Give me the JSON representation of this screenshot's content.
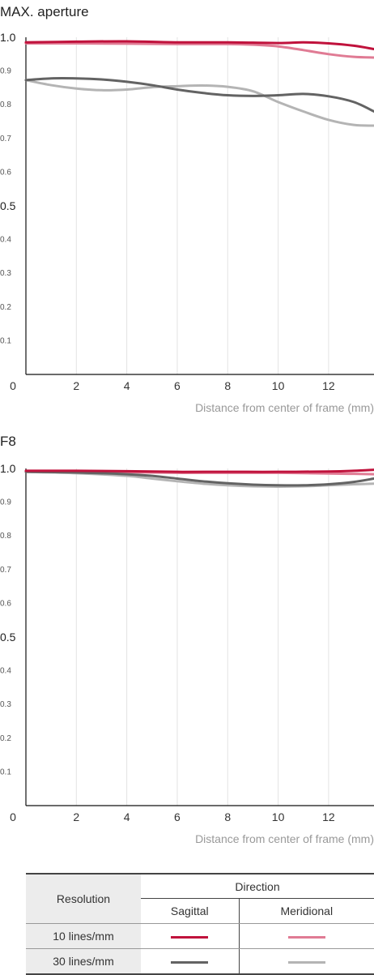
{
  "chart_data": [
    {
      "type": "line",
      "title": "MAX. aperture",
      "xlabel": "Distance from center of frame (mm)",
      "ylabel": "",
      "xlim": [
        0,
        13.8
      ],
      "ylim": [
        0,
        1.0
      ],
      "x_ticks": [
        "0",
        "2",
        "4",
        "6",
        "8",
        "10",
        "12"
      ],
      "y_ticks": [
        "1.0",
        "0.9",
        "0.8",
        "0.7",
        "0.6",
        "0.5",
        "0.4",
        "0.3",
        "0.2",
        "0.1"
      ],
      "grid": true,
      "series": [
        {
          "color": "#c0123c",
          "x": [
            0,
            2,
            4,
            6,
            8,
            10,
            11,
            12,
            13,
            13.8
          ],
          "values": [
            0.985,
            0.987,
            0.988,
            0.985,
            0.985,
            0.983,
            0.985,
            0.982,
            0.975,
            0.965
          ]
        },
        {
          "color": "#e07b94",
          "x": [
            0,
            2,
            4,
            6,
            8,
            9,
            10,
            11,
            12,
            13,
            13.8
          ],
          "values": [
            0.982,
            0.982,
            0.981,
            0.98,
            0.98,
            0.978,
            0.973,
            0.962,
            0.95,
            0.942,
            0.94
          ]
        },
        {
          "color": "#636363",
          "x": [
            0,
            1,
            2,
            3,
            4,
            5,
            6,
            7,
            8,
            9,
            10,
            11,
            12,
            13,
            13.8
          ],
          "values": [
            0.873,
            0.878,
            0.878,
            0.875,
            0.868,
            0.858,
            0.845,
            0.835,
            0.828,
            0.826,
            0.828,
            0.832,
            0.825,
            0.808,
            0.78
          ]
        },
        {
          "color": "#b4b4b4",
          "x": [
            0,
            1,
            2,
            3,
            4,
            5,
            6,
            7,
            8,
            9,
            10,
            11,
            12,
            13,
            13.8
          ],
          "values": [
            0.873,
            0.858,
            0.848,
            0.843,
            0.845,
            0.852,
            0.855,
            0.857,
            0.853,
            0.84,
            0.808,
            0.78,
            0.755,
            0.74,
            0.738
          ]
        }
      ]
    },
    {
      "type": "line",
      "title": "F8",
      "xlabel": "Distance from center of frame (mm)",
      "ylabel": "",
      "xlim": [
        0,
        13.8
      ],
      "ylim": [
        0,
        1.0
      ],
      "x_ticks": [
        "0",
        "2",
        "4",
        "6",
        "8",
        "10",
        "12"
      ],
      "y_ticks": [
        "1.0",
        "0.9",
        "0.8",
        "0.7",
        "0.6",
        "0.5",
        "0.4",
        "0.3",
        "0.2",
        "0.1"
      ],
      "grid": true,
      "series": [
        {
          "color": "#c0123c",
          "x": [
            0,
            2,
            4,
            6,
            8,
            10,
            12,
            13,
            13.8
          ],
          "values": [
            0.993,
            0.993,
            0.992,
            0.99,
            0.99,
            0.99,
            0.991,
            0.993,
            0.996
          ]
        },
        {
          "color": "#e07b94",
          "x": [
            0,
            2,
            4,
            6,
            8,
            10,
            12,
            13,
            13.8
          ],
          "values": [
            0.991,
            0.99,
            0.989,
            0.987,
            0.987,
            0.987,
            0.985,
            0.984,
            0.983
          ]
        },
        {
          "color": "#636363",
          "x": [
            0,
            2,
            4,
            5,
            6,
            7,
            8,
            9,
            10,
            11,
            12,
            13,
            13.8
          ],
          "values": [
            0.99,
            0.988,
            0.983,
            0.978,
            0.97,
            0.962,
            0.956,
            0.952,
            0.95,
            0.95,
            0.953,
            0.96,
            0.97
          ]
        },
        {
          "color": "#b4b4b4",
          "x": [
            0,
            2,
            4,
            5,
            6,
            7,
            8,
            9,
            10,
            11,
            12,
            13,
            13.8
          ],
          "values": [
            0.99,
            0.986,
            0.978,
            0.97,
            0.962,
            0.955,
            0.95,
            0.947,
            0.946,
            0.947,
            0.95,
            0.953,
            0.955
          ]
        }
      ]
    }
  ],
  "legend": {
    "resolution_header": "Resolution",
    "direction_header": "Direction",
    "sagittal": "Sagittal",
    "meridional": "Meridional",
    "rows": [
      {
        "label": "10 lines/mm",
        "sagittal_color": "#c0123c",
        "meridional_color": "#e07b94"
      },
      {
        "label": "30 lines/mm",
        "sagittal_color": "#636363",
        "meridional_color": "#b4b4b4"
      }
    ]
  }
}
